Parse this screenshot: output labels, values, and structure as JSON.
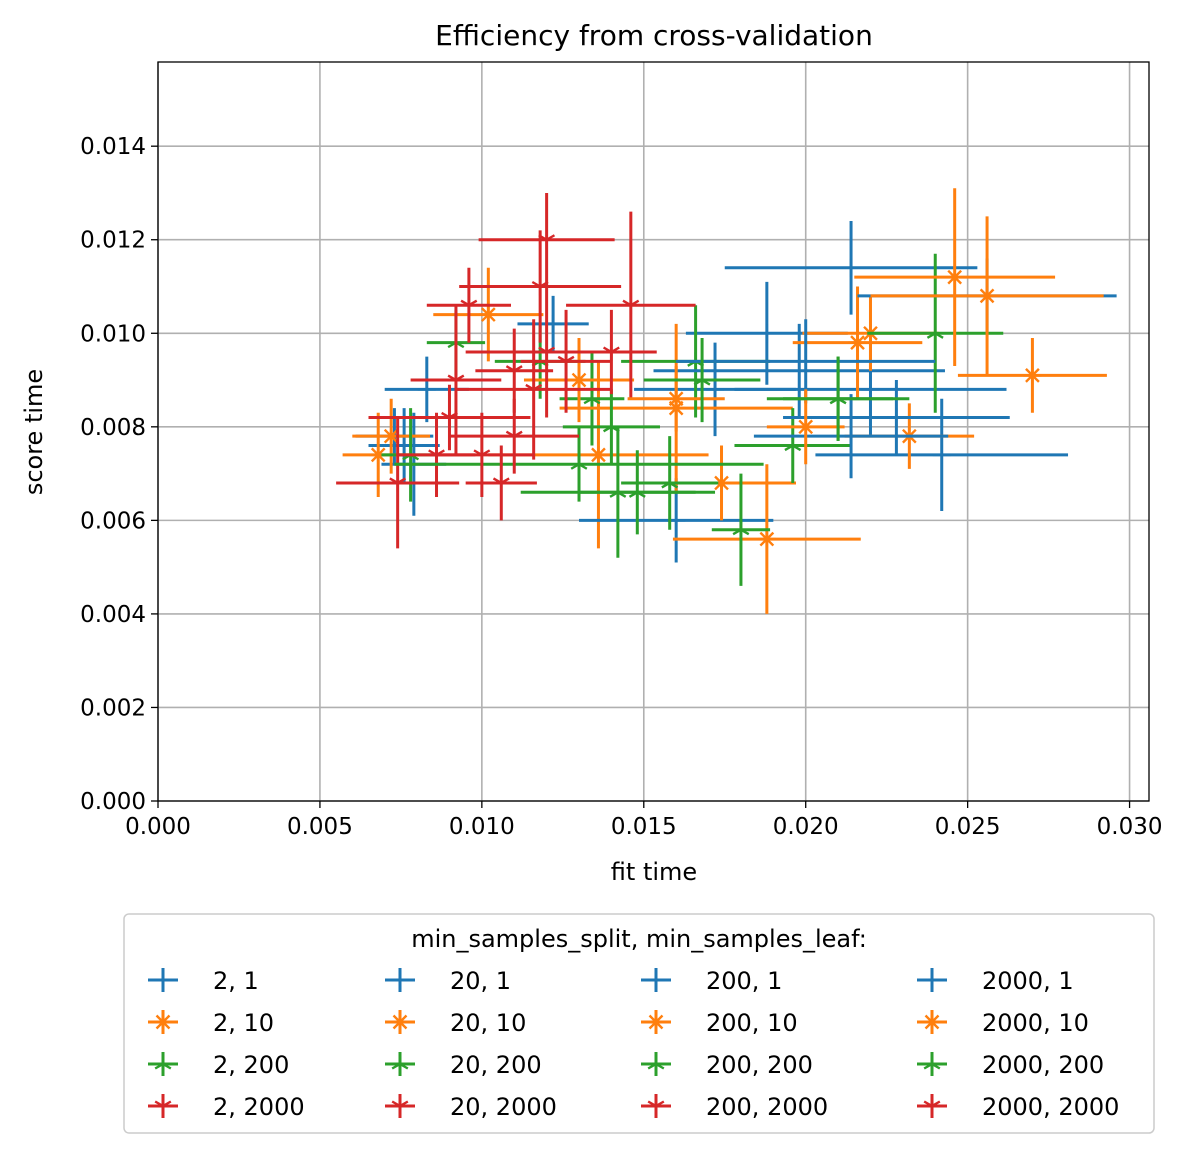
{
  "chart_data": {
    "type": "scatter",
    "title": "Efficiency from cross-validation",
    "xlabel": "fit time",
    "ylabel": "score time",
    "xlim": [
      0.0,
      0.0306
    ],
    "ylim": [
      0.0,
      0.0158
    ],
    "x_ticks": [
      "0.000",
      "0.005",
      "0.010",
      "0.015",
      "0.020",
      "0.025",
      "0.030"
    ],
    "y_ticks": [
      "0.000",
      "0.002",
      "0.004",
      "0.006",
      "0.008",
      "0.010",
      "0.012",
      "0.014"
    ],
    "grid": true,
    "legend": {
      "title": "min_samples_split, min_samples_leaf:",
      "placement": "below-center",
      "columns": 4
    },
    "colors": {
      "leaf_1": "#1f77b4",
      "leaf_10": "#ff7f0e",
      "leaf_200": "#2ca02c",
      "leaf_2000": "#d62728"
    },
    "series": [
      {
        "name": "2, 1",
        "color": "#1f77b4",
        "marker": "plus",
        "points": [
          {
            "x": 0.0076,
            "y": 0.0076,
            "xerr": 0.0011,
            "yerr": 0.0008
          },
          {
            "x": 0.0083,
            "y": 0.0088,
            "xerr": 0.0013,
            "yerr": 0.0007
          },
          {
            "x": 0.0079,
            "y": 0.0072,
            "xerr": 0.001,
            "yerr": 0.0011
          },
          {
            "x": 0.0073,
            "y": 0.0078,
            "xerr": 0.0012,
            "yerr": 0.0006
          }
        ]
      },
      {
        "name": "2, 10",
        "color": "#ff7f0e",
        "marker": "star",
        "points": [
          {
            "x": 0.0068,
            "y": 0.0074,
            "xerr": 0.0011,
            "yerr": 0.0009
          },
          {
            "x": 0.0072,
            "y": 0.0078,
            "xerr": 0.0012,
            "yerr": 0.0008
          },
          {
            "x": 0.0102,
            "y": 0.0104,
            "xerr": 0.0017,
            "yerr": 0.001
          },
          {
            "x": 0.0136,
            "y": 0.0074,
            "xerr": 0.0034,
            "yerr": 0.002
          }
        ]
      },
      {
        "name": "2, 200",
        "color": "#2ca02c",
        "marker": "tri_up",
        "points": [
          {
            "x": 0.0078,
            "y": 0.0074,
            "xerr": 0.0009,
            "yerr": 0.001
          },
          {
            "x": 0.0092,
            "y": 0.0098,
            "xerr": 0.0009,
            "yerr": 0.0007
          },
          {
            "x": 0.0118,
            "y": 0.0094,
            "xerr": 0.0014,
            "yerr": 0.0008
          },
          {
            "x": 0.0134,
            "y": 0.0086,
            "xerr": 0.001,
            "yerr": 0.001
          }
        ]
      },
      {
        "name": "2, 2000",
        "color": "#d62728",
        "marker": "tri_down",
        "points": [
          {
            "x": 0.0074,
            "y": 0.0068,
            "xerr": 0.0019,
            "yerr": 0.0014
          },
          {
            "x": 0.0092,
            "y": 0.009,
            "xerr": 0.0014,
            "yerr": 0.0016
          },
          {
            "x": 0.0096,
            "y": 0.0106,
            "xerr": 0.0013,
            "yerr": 0.0008
          },
          {
            "x": 0.0086,
            "y": 0.0074,
            "xerr": 0.0012,
            "yerr": 0.0009
          }
        ]
      },
      {
        "name": "20, 1",
        "color": "#1f77b4",
        "marker": "plus",
        "points": [
          {
            "x": 0.0122,
            "y": 0.0102,
            "xerr": 0.0011,
            "yerr": 0.0006
          },
          {
            "x": 0.016,
            "y": 0.006,
            "xerr": 0.003,
            "yerr": 0.0009
          },
          {
            "x": 0.0172,
            "y": 0.0088,
            "xerr": 0.0025,
            "yerr": 0.001
          },
          {
            "x": 0.0188,
            "y": 0.01,
            "xerr": 0.0025,
            "yerr": 0.0011
          }
        ]
      },
      {
        "name": "20, 10",
        "color": "#ff7f0e",
        "marker": "star",
        "points": [
          {
            "x": 0.013,
            "y": 0.009,
            "xerr": 0.0017,
            "yerr": 0.0009
          },
          {
            "x": 0.016,
            "y": 0.0084,
            "xerr": 0.0036,
            "yerr": 0.0018
          },
          {
            "x": 0.0174,
            "y": 0.0068,
            "xerr": 0.0023,
            "yerr": 0.0008
          },
          {
            "x": 0.0188,
            "y": 0.0056,
            "xerr": 0.0029,
            "yerr": 0.0016
          }
        ]
      },
      {
        "name": "20, 200",
        "color": "#2ca02c",
        "marker": "tri_up",
        "points": [
          {
            "x": 0.013,
            "y": 0.0072,
            "xerr": 0.0057,
            "yerr": 0.0008
          },
          {
            "x": 0.0142,
            "y": 0.0066,
            "xerr": 0.003,
            "yerr": 0.0014
          },
          {
            "x": 0.0158,
            "y": 0.0068,
            "xerr": 0.0015,
            "yerr": 0.001
          },
          {
            "x": 0.0166,
            "y": 0.0094,
            "xerr": 0.0023,
            "yerr": 0.0012
          }
        ]
      },
      {
        "name": "20, 2000",
        "color": "#d62728",
        "marker": "tri_down",
        "points": [
          {
            "x": 0.012,
            "y": 0.012,
            "xerr": 0.0021,
            "yerr": 0.001
          },
          {
            "x": 0.0118,
            "y": 0.011,
            "xerr": 0.0025,
            "yerr": 0.0012
          },
          {
            "x": 0.0146,
            "y": 0.0106,
            "xerr": 0.002,
            "yerr": 0.002
          },
          {
            "x": 0.012,
            "y": 0.0096,
            "xerr": 0.0025,
            "yerr": 0.0014
          }
        ]
      },
      {
        "name": "200, 1",
        "color": "#1f77b4",
        "marker": "plus",
        "points": [
          {
            "x": 0.0214,
            "y": 0.0114,
            "xerr": 0.0039,
            "yerr": 0.001
          },
          {
            "x": 0.022,
            "y": 0.0088,
            "xerr": 0.0042,
            "yerr": 0.001
          },
          {
            "x": 0.0242,
            "y": 0.0074,
            "xerr": 0.0039,
            "yerr": 0.0012
          },
          {
            "x": 0.0198,
            "y": 0.0092,
            "xerr": 0.0045,
            "yerr": 0.001
          }
        ]
      },
      {
        "name": "200, 10",
        "color": "#ff7f0e",
        "marker": "star",
        "points": [
          {
            "x": 0.0216,
            "y": 0.0098,
            "xerr": 0.002,
            "yerr": 0.0012
          },
          {
            "x": 0.022,
            "y": 0.01,
            "xerr": 0.0021,
            "yerr": 0.0008
          },
          {
            "x": 0.0232,
            "y": 0.0078,
            "xerr": 0.002,
            "yerr": 0.0007
          },
          {
            "x": 0.027,
            "y": 0.0091,
            "xerr": 0.0023,
            "yerr": 0.0008
          }
        ]
      },
      {
        "name": "200, 200",
        "color": "#2ca02c",
        "marker": "tri_up",
        "points": [
          {
            "x": 0.018,
            "y": 0.0058,
            "xerr": 0.0009,
            "yerr": 0.0012
          },
          {
            "x": 0.0196,
            "y": 0.0076,
            "xerr": 0.0018,
            "yerr": 0.0008
          },
          {
            "x": 0.021,
            "y": 0.0086,
            "xerr": 0.0017,
            "yerr": 0.0009
          },
          {
            "x": 0.024,
            "y": 0.01,
            "xerr": 0.0021,
            "yerr": 0.0017
          }
        ]
      },
      {
        "name": "200, 2000",
        "color": "#d62728",
        "marker": "tri_down",
        "points": [
          {
            "x": 0.011,
            "y": 0.0078,
            "xerr": 0.002,
            "yerr": 0.0008
          },
          {
            "x": 0.0106,
            "y": 0.0068,
            "xerr": 0.0011,
            "yerr": 0.0008
          },
          {
            "x": 0.009,
            "y": 0.0082,
            "xerr": 0.0025,
            "yerr": 0.0007
          },
          {
            "x": 0.0116,
            "y": 0.0088,
            "xerr": 0.0024,
            "yerr": 0.0015
          }
        ]
      },
      {
        "name": "2000, 1",
        "color": "#1f77b4",
        "marker": "plus",
        "points": [
          {
            "x": 0.0256,
            "y": 0.0108,
            "xerr": 0.004,
            "yerr": 0.0008
          },
          {
            "x": 0.0228,
            "y": 0.0082,
            "xerr": 0.0035,
            "yerr": 0.0008
          },
          {
            "x": 0.02,
            "y": 0.0094,
            "xerr": 0.004,
            "yerr": 0.0009
          },
          {
            "x": 0.0214,
            "y": 0.0078,
            "xerr": 0.003,
            "yerr": 0.0009
          }
        ]
      },
      {
        "name": "2000, 10",
        "color": "#ff7f0e",
        "marker": "star",
        "points": [
          {
            "x": 0.0246,
            "y": 0.0112,
            "xerr": 0.0031,
            "yerr": 0.0019
          },
          {
            "x": 0.0256,
            "y": 0.0108,
            "xerr": 0.0036,
            "yerr": 0.0017
          },
          {
            "x": 0.02,
            "y": 0.008,
            "xerr": 0.0012,
            "yerr": 0.0008
          },
          {
            "x": 0.016,
            "y": 0.0086,
            "xerr": 0.0015,
            "yerr": 0.0007
          }
        ]
      },
      {
        "name": "2000, 200",
        "color": "#2ca02c",
        "marker": "tri_up",
        "points": [
          {
            "x": 0.021,
            "y": 0.0086,
            "xerr": 0.0022,
            "yerr": 0.0009
          },
          {
            "x": 0.0148,
            "y": 0.0066,
            "xerr": 0.0018,
            "yerr": 0.0009
          },
          {
            "x": 0.0168,
            "y": 0.009,
            "xerr": 0.0018,
            "yerr": 0.0009
          },
          {
            "x": 0.014,
            "y": 0.008,
            "xerr": 0.0015,
            "yerr": 0.0008
          }
        ]
      },
      {
        "name": "2000, 2000",
        "color": "#d62728",
        "marker": "tri_down",
        "points": [
          {
            "x": 0.01,
            "y": 0.0074,
            "xerr": 0.0016,
            "yerr": 0.0009
          },
          {
            "x": 0.014,
            "y": 0.0096,
            "xerr": 0.0014,
            "yerr": 0.0009
          },
          {
            "x": 0.011,
            "y": 0.0092,
            "xerr": 0.0012,
            "yerr": 0.0009
          },
          {
            "x": 0.0126,
            "y": 0.0094,
            "xerr": 0.0014,
            "yerr": 0.0011
          }
        ]
      }
    ]
  }
}
